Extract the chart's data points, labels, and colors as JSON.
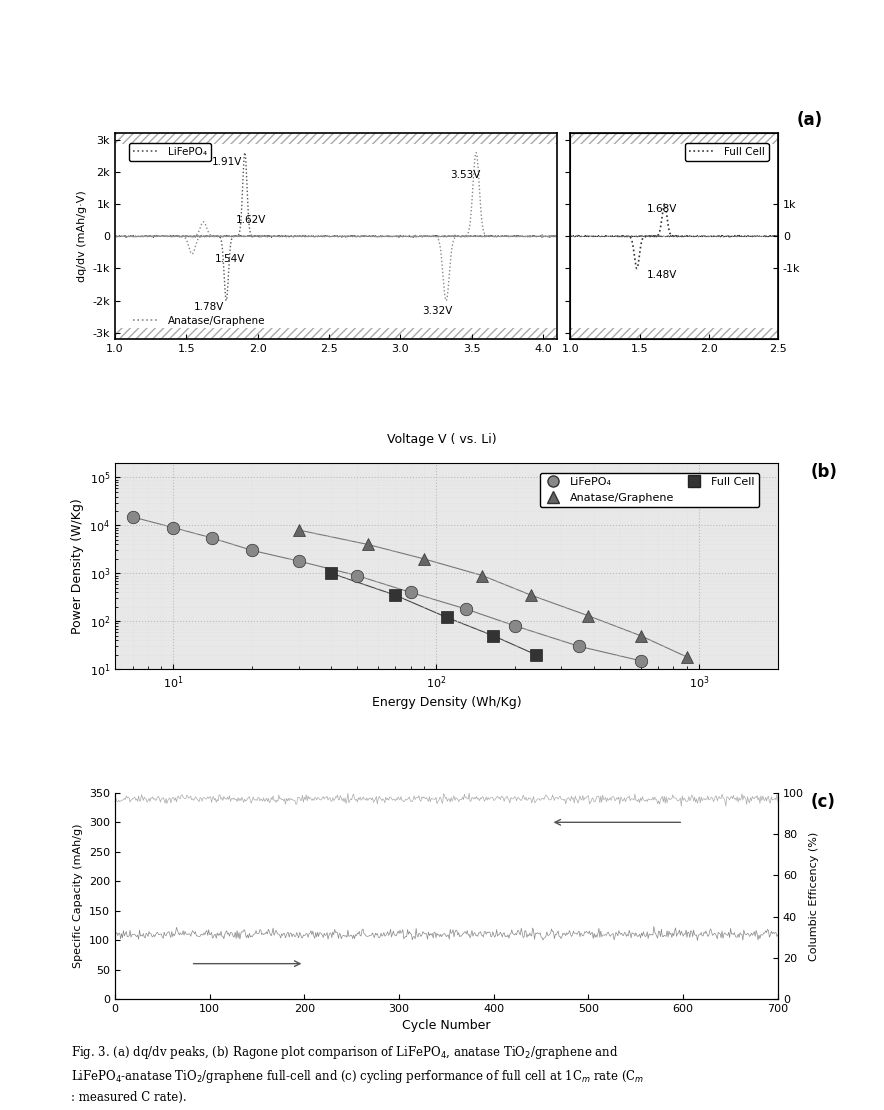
{
  "fig_width": 8.84,
  "fig_height": 11.1,
  "background_color": "#ffffff",
  "panel_a": {
    "label": "(a)",
    "left_ylabel": "dq/dv (mAh/g·V)",
    "xlabel": "Voltage V ( vs. Li)",
    "left_xlim": [
      1.0,
      4.1
    ],
    "right_xlim": [
      1.0,
      2.5
    ],
    "ylim": [
      -3000,
      3000
    ],
    "left_yticks": [
      -3000,
      -2000,
      -1000,
      0,
      1000,
      2000,
      3000
    ],
    "left_yticklabels": [
      "-3k",
      "-2k",
      "-1k",
      "0",
      "1k",
      "2k",
      "3k"
    ],
    "right_yticks": [
      -1000,
      0,
      1000
    ],
    "right_yticklabels": [
      "-1k",
      "0",
      "1k"
    ],
    "left_xticks": [
      1.0,
      1.5,
      2.0,
      2.5,
      3.0,
      3.5,
      4.0
    ],
    "right_xticks": [
      1.0,
      1.5,
      2.0,
      2.5
    ],
    "lifepo4_color": "#555555",
    "anatase_color": "#888888",
    "full_cell_color": "#333333",
    "legend_lifepo4": "LiFePO₄",
    "legend_anatase": "Anatase/Graphene",
    "legend_full_cell": "Full Cell",
    "hatch_color": "#aaaaaa"
  },
  "panel_b": {
    "label": "(b)",
    "xlabel": "Energy Density (Wh/Kg)",
    "ylabel": "Power Density (W/Kg)",
    "xlim_low": 6,
    "xlim_high": 2000,
    "ylim_low": 10,
    "ylim_high": 200000,
    "lifepo4_x": [
      7,
      10,
      14,
      20,
      30,
      50,
      80,
      130,
      200,
      350,
      600
    ],
    "lifepo4_y": [
      15000,
      9000,
      5500,
      3000,
      1800,
      900,
      400,
      180,
      80,
      30,
      15
    ],
    "anatase_x": [
      30,
      55,
      90,
      150,
      230,
      380,
      600,
      900
    ],
    "anatase_y": [
      8000,
      4000,
      2000,
      900,
      350,
      130,
      50,
      18
    ],
    "fullcell_x": [
      40,
      70,
      110,
      165,
      240
    ],
    "fullcell_y": [
      1000,
      350,
      120,
      50,
      20
    ],
    "lifepo4_color": "#888888",
    "anatase_color": "#666666",
    "fullcell_color": "#333333",
    "legend_lifepo4": "LiFePO₄",
    "legend_anatase": "Anatase/Graphene",
    "legend_fullcell": "Full Cell",
    "bg_color": "#e8e8e8"
  },
  "panel_c": {
    "label": "(c)",
    "xlabel": "Cycle Number",
    "left_ylabel": "Specific Capacity (mAh/g)",
    "right_ylabel": "Columbic Efficency (%)",
    "xlim": [
      0,
      700
    ],
    "left_ylim": [
      0,
      350
    ],
    "left_yticks": [
      0,
      50,
      100,
      150,
      200,
      250,
      300,
      350
    ],
    "right_yticks_vals": [
      0,
      20,
      40,
      60,
      80,
      100
    ],
    "xticks": [
      0,
      100,
      200,
      300,
      400,
      500,
      600,
      700
    ],
    "capacity_value": 110,
    "efficiency_pct": 97,
    "capacity_noise": 4,
    "efficiency_noise": 1
  }
}
